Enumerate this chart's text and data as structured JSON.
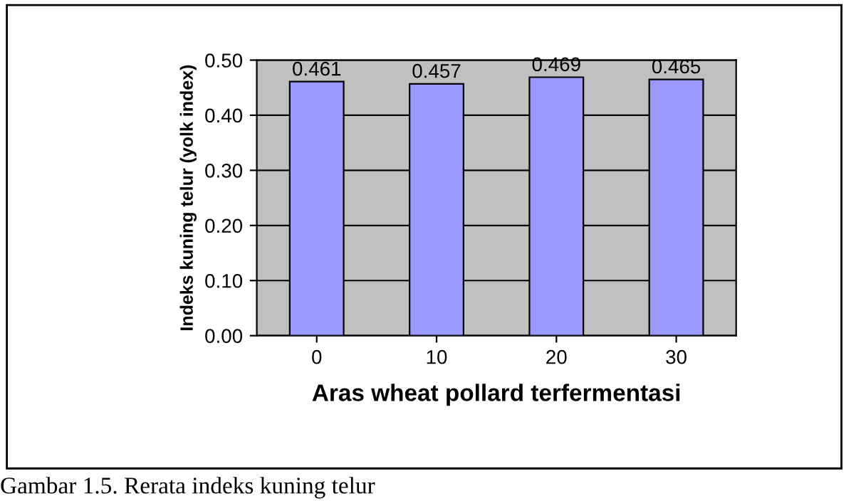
{
  "chart_data": {
    "type": "bar",
    "xlabel": "Aras wheat pollard terfermentasi",
    "ylabel": "Indeks kuning telur (yolk index)",
    "categories": [
      "0",
      "10",
      "20",
      "30"
    ],
    "values": [
      0.461,
      0.457,
      0.469,
      0.465
    ],
    "color": "#9999ff",
    "data_labels": true,
    "ylim": [
      0,
      0.5
    ],
    "yticks": [
      {
        "value": 0,
        "label": "0.00"
      },
      {
        "value": 0.1,
        "label": "0.10"
      },
      {
        "value": 0.2,
        "label": "0.20"
      },
      {
        "value": 0.3,
        "label": "0.30"
      },
      {
        "value": 0.4,
        "label": "0.40"
      },
      {
        "value": 0.5,
        "label": "0.50"
      }
    ],
    "grid": "y",
    "annotations": [
      "Gambar 1.5. Rerata indeks kuning telur"
    ]
  }
}
